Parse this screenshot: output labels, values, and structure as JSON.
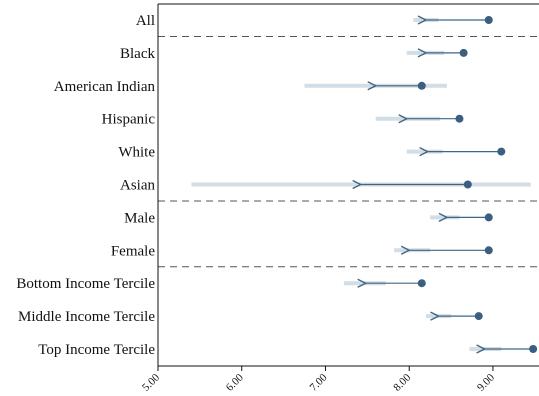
{
  "chart_data": {
    "type": "dot-arrow",
    "xlim": [
      5.0,
      9.55
    ],
    "x_ticks": [
      "5.00",
      "6.00",
      "7.00",
      "8.00",
      "9.00"
    ],
    "groups": [
      {
        "rows": [
          {
            "label": "All",
            "start": 8.95,
            "end": 8.2,
            "ci": [
              8.05,
              8.35
            ]
          }
        ]
      },
      {
        "rows": [
          {
            "label": "Black",
            "start": 8.65,
            "end": 8.2,
            "ci": [
              7.97,
              8.42
            ]
          },
          {
            "label": "American Indian",
            "start": 8.15,
            "end": 7.6,
            "ci": [
              6.75,
              8.45
            ]
          },
          {
            "label": "Hispanic",
            "start": 8.6,
            "end": 7.97,
            "ci": [
              7.6,
              8.37
            ]
          },
          {
            "label": "White",
            "start": 9.1,
            "end": 8.22,
            "ci": [
              7.97,
              8.4
            ]
          },
          {
            "label": "Asian",
            "start": 8.7,
            "end": 7.42,
            "ci": [
              5.4,
              9.45
            ]
          }
        ]
      },
      {
        "rows": [
          {
            "label": "Male",
            "start": 8.95,
            "end": 8.45,
            "ci": [
              8.25,
              8.6
            ]
          },
          {
            "label": "Female",
            "start": 8.95,
            "end": 8.0,
            "ci": [
              7.82,
              8.25
            ]
          }
        ]
      },
      {
        "rows": [
          {
            "label": "Bottom Income Tercile",
            "start": 8.15,
            "end": 7.48,
            "ci": [
              7.22,
              7.72
            ]
          },
          {
            "label": "Middle Income Tercile",
            "start": 8.83,
            "end": 8.35,
            "ci": [
              8.2,
              8.5
            ]
          },
          {
            "label": "Top Income Tercile",
            "start": 9.48,
            "end": 8.9,
            "ci": [
              8.72,
              9.1
            ]
          }
        ]
      }
    ],
    "colors": {
      "line": "#3f6685",
      "dot": "#3a5f80",
      "ci": "#d2dde5",
      "separator": "#555555",
      "axis": "#111111"
    }
  }
}
